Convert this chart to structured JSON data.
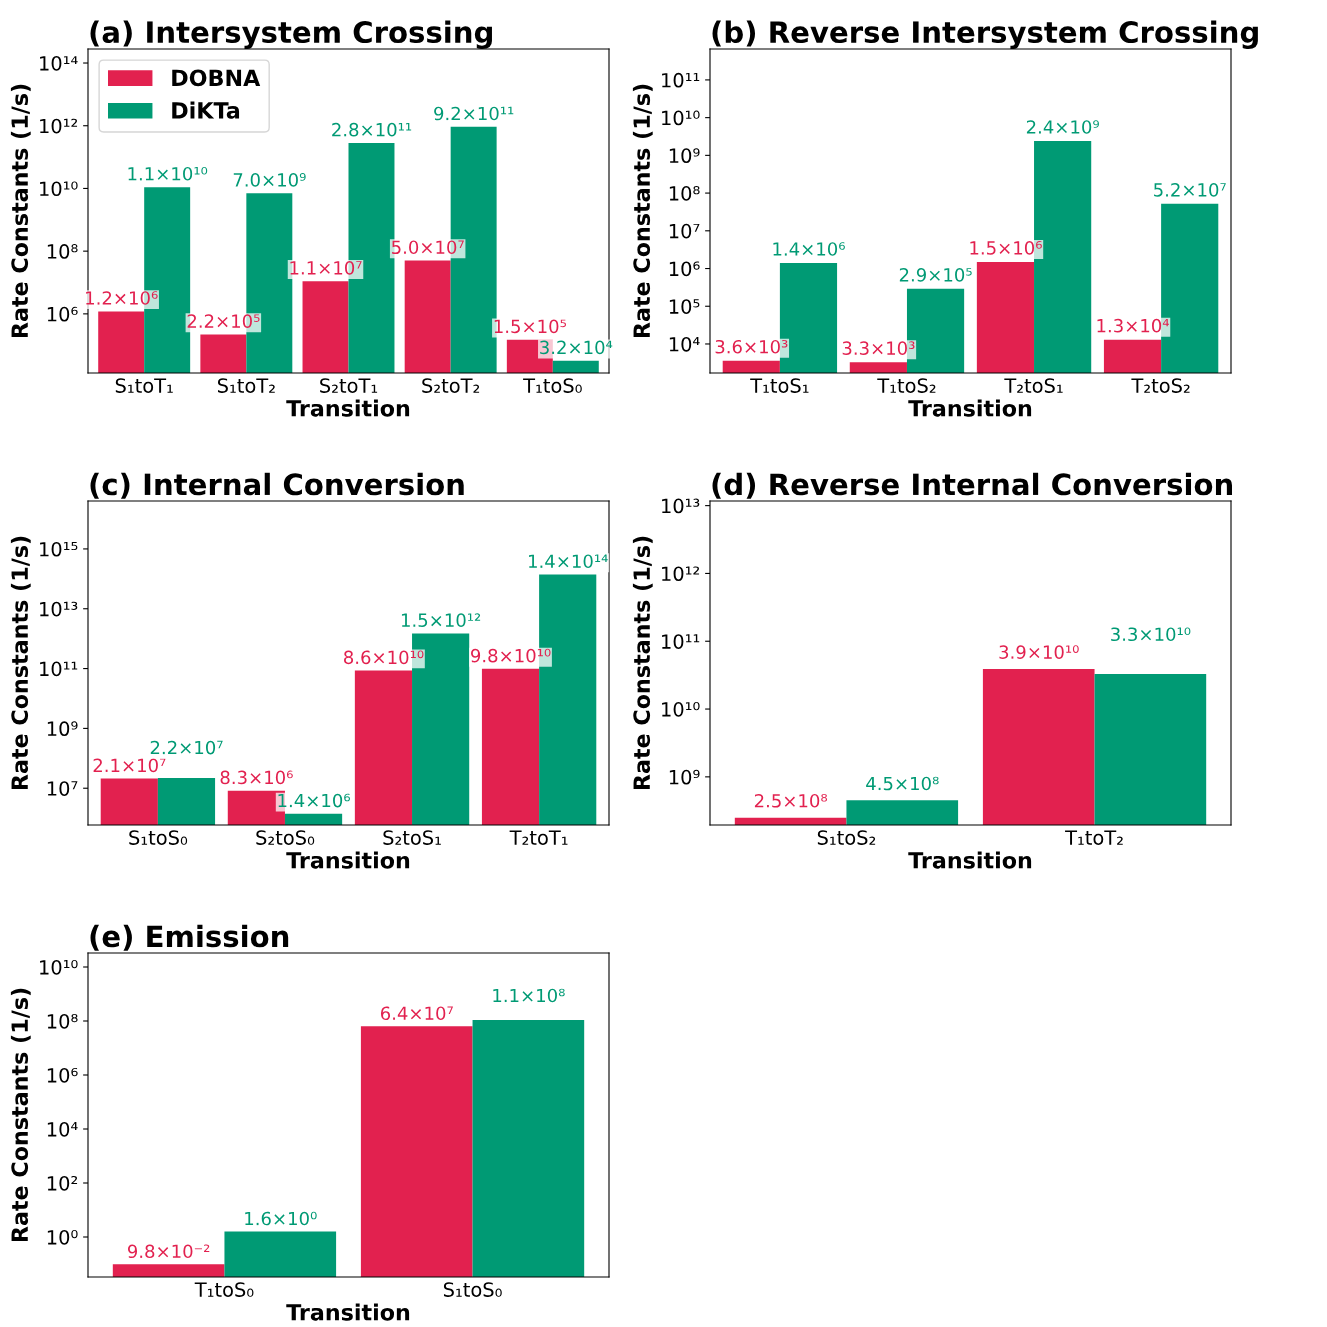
{
  "chart_data": [
    {
      "type": "bar",
      "title": "(a) Intersystem Crossing",
      "xlabel": "Transition",
      "ylabel": "Rate Constants (1/s)",
      "log": "y",
      "legend": "top left",
      "categories": [
        "S₁toT₁",
        "S₁toT₂",
        "S₂toT₁",
        "S₂toT₂",
        "T₁toS₀"
      ],
      "ylim": [
        13000,
        280000000000000.0
      ],
      "yticks": [
        {
          "value": 1000000.0,
          "label": "10⁶"
        },
        {
          "value": 100000000.0,
          "label": "10⁸"
        },
        {
          "value": 10000000000.0,
          "label": "10¹⁰"
        },
        {
          "value": 1000000000000.0,
          "label": "10¹²"
        },
        {
          "value": 100000000000000.0,
          "label": "10¹⁴"
        }
      ],
      "series": [
        {
          "name": "DOBNA",
          "color": "#e2214f",
          "values": [
            1200000.0,
            220000.0,
            11000000.0,
            50000000.0,
            150000.0
          ],
          "value_labels": [
            "1.2×10⁶",
            "2.2×10⁵",
            "1.1×10⁷",
            "5.0×10⁷",
            "1.5×10⁵"
          ]
        },
        {
          "name": "DiKTa",
          "color": "#009a74",
          "values": [
            11000000000.0,
            7000000000.0,
            280000000000.0,
            920000000000.0,
            32000.0
          ],
          "value_labels": [
            "1.1×10¹⁰",
            "7.0×10⁹",
            "2.8×10¹¹",
            "9.2×10¹¹",
            "3.2×10⁴"
          ]
        }
      ]
    },
    {
      "type": "bar",
      "title": "(b) Reverse Intersystem Crossing",
      "xlabel": "Transition",
      "ylabel": "Rate Constants (1/s)",
      "log": "y",
      "categories": [
        "T₁toS₁",
        "T₁toS₂",
        "T₂toS₁",
        "T₂toS₂"
      ],
      "ylim": [
        1700,
        660000000000.0
      ],
      "yticks": [
        {
          "value": 10000.0,
          "label": "10⁴"
        },
        {
          "value": 100000.0,
          "label": "10⁵"
        },
        {
          "value": 1000000.0,
          "label": "10⁶"
        },
        {
          "value": 10000000.0,
          "label": "10⁷"
        },
        {
          "value": 100000000.0,
          "label": "10⁸"
        },
        {
          "value": 1000000000.0,
          "label": "10⁹"
        },
        {
          "value": 10000000000.0,
          "label": "10¹⁰"
        },
        {
          "value": 100000000000.0,
          "label": "10¹¹"
        }
      ],
      "series": [
        {
          "color": "#e2214f",
          "values": [
            3600.0,
            3300.0,
            1500000.0,
            13000.0
          ],
          "value_labels": [
            "3.6×10³",
            "3.3×10³",
            "1.5×10⁶",
            "1.3×10⁴"
          ]
        },
        {
          "color": "#009a74",
          "values": [
            1400000.0,
            290000.0,
            2400000000.0,
            52000000.0
          ],
          "value_labels": [
            "1.4×10⁶",
            "2.9×10⁵",
            "2.4×10⁹",
            "5.2×10⁷"
          ]
        }
      ]
    },
    {
      "type": "bar",
      "title": "(c) Internal Conversion",
      "xlabel": "Transition",
      "ylabel": "Rate Constants (1/s)",
      "log": "y",
      "categories": [
        "S₁toS₀",
        "S₂toS₀",
        "S₂toS₁",
        "T₂toT₁"
      ],
      "ylim": [
        590000,
        4e+16
      ],
      "yticks": [
        {
          "value": 10000000.0,
          "label": "10⁷"
        },
        {
          "value": 1000000000.0,
          "label": "10⁹"
        },
        {
          "value": 100000000000.0,
          "label": "10¹¹"
        },
        {
          "value": 10000000000000.0,
          "label": "10¹³"
        },
        {
          "value": 1000000000000000.0,
          "label": "10¹⁵"
        }
      ],
      "series": [
        {
          "color": "#e2214f",
          "values": [
            21000000.0,
            8300000.0,
            86000000000.0,
            98000000000.0
          ],
          "value_labels": [
            "2.1×10⁷",
            "8.3×10⁶",
            "8.6×10¹⁰",
            "9.8×10¹⁰"
          ]
        },
        {
          "color": "#009a74",
          "values": [
            22000000.0,
            1400000.0,
            1500000000000.0,
            140000000000000.0
          ],
          "value_labels": [
            "2.2×10⁷",
            "1.4×10⁶",
            "1.5×10¹²",
            "1.4×10¹⁴"
          ]
        }
      ]
    },
    {
      "type": "bar",
      "title": "(d) Reverse Internal Conversion",
      "xlabel": "Transition",
      "ylabel": "Rate Constants (1/s)",
      "log": "y",
      "categories": [
        "S₁toS₂",
        "T₁toT₂"
      ],
      "ylim": [
        195000000.0,
        11700000000000.0
      ],
      "yticks": [
        {
          "value": 1000000000.0,
          "label": "10⁹"
        },
        {
          "value": 10000000000.0,
          "label": "10¹⁰"
        },
        {
          "value": 100000000000.0,
          "label": "10¹¹"
        },
        {
          "value": 1000000000000.0,
          "label": "10¹²"
        },
        {
          "value": 10000000000000.0,
          "label": "10¹³"
        }
      ],
      "series": [
        {
          "color": "#e2214f",
          "values": [
            250000000.0,
            39000000000.0
          ],
          "value_labels": [
            "2.5×10⁸",
            "3.9×10¹⁰"
          ]
        },
        {
          "color": "#009a74",
          "values": [
            450000000.0,
            33000000000.0
          ],
          "value_labels": [
            "4.5×10⁸",
            "3.3×10¹⁰"
          ]
        }
      ]
    },
    {
      "type": "bar",
      "title": "(e) Emission",
      "xlabel": "Transition",
      "ylabel": "Rate Constants (1/s)",
      "log": "y",
      "categories": [
        "T₁toS₀",
        "S₁toS₀"
      ],
      "ylim": [
        0.033,
        33000000000.0
      ],
      "yticks": [
        {
          "value": 1,
          "label": "10⁰"
        },
        {
          "value": 100,
          "label": "10²"
        },
        {
          "value": 10000.0,
          "label": "10⁴"
        },
        {
          "value": 1000000.0,
          "label": "10⁶"
        },
        {
          "value": 100000000.0,
          "label": "10⁸"
        },
        {
          "value": 10000000000.0,
          "label": "10¹⁰"
        }
      ],
      "series": [
        {
          "color": "#e2214f",
          "values": [
            0.098,
            64000000.0
          ],
          "value_labels": [
            "9.8×10⁻²",
            "6.4×10⁷"
          ]
        },
        {
          "color": "#009a74",
          "values": [
            1.6,
            110000000.0
          ],
          "value_labels": [
            "1.6×10⁰",
            "1.1×10⁸"
          ]
        }
      ]
    }
  ]
}
